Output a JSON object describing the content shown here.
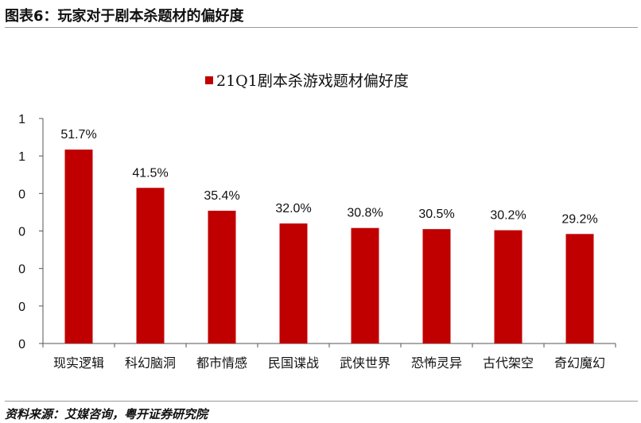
{
  "header": {
    "title": "图表6：玩家对于剧本杀题材的偏好度",
    "source": "资料来源：艾媒咨询，粤开证券研究院"
  },
  "chart_data": {
    "type": "bar",
    "categories": [
      "现实逻辑",
      "科幻脑洞",
      "都市情感",
      "民国谍战",
      "武侠世界",
      "恐怖灵异",
      "古代架空",
      "奇幻魔幻"
    ],
    "series": [
      {
        "name": "21Q1剧本杀游戏题材偏好度",
        "values": [
          51.7,
          41.5,
          35.4,
          32.0,
          30.8,
          30.5,
          30.2,
          29.2
        ],
        "labels": [
          "51.7%",
          "41.5%",
          "35.4%",
          "32.0%",
          "30.8%",
          "30.5%",
          "30.2%",
          "29.2%"
        ],
        "color": "#C00000"
      }
    ],
    "ylim": [
      0,
      60
    ],
    "ytick_labels": [
      "0",
      "0",
      "0",
      "0",
      "0",
      "1",
      "1"
    ],
    "legend_position": "top-center",
    "grid": false
  }
}
